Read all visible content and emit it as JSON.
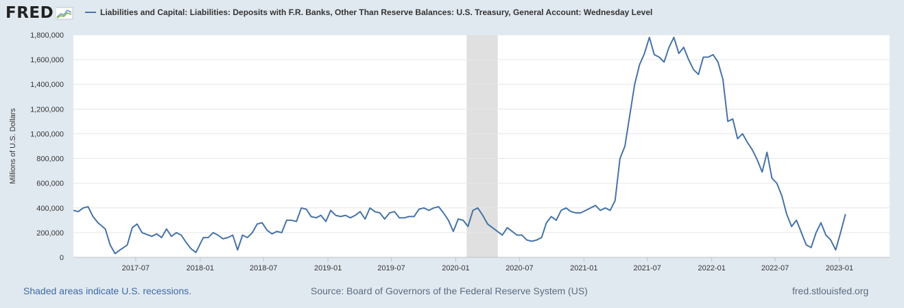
{
  "header": {
    "logo_text": "FRED",
    "legend_label": "Liabilities and Capital: Liabilities: Deposits with F.R. Banks, Other Than Reserve Balances: U.S. Treasury, General Account: Wednesday Level"
  },
  "footer": {
    "recession_note": "Shaded areas indicate U.S. recessions.",
    "source": "Source: Board of Governors of the Federal Reserve System (US)",
    "site": "fred.stlouisfed.org"
  },
  "colors": {
    "series": "#4572a7",
    "recession": "#e0e0e0",
    "background": "#e1e9f0"
  },
  "chart_data": {
    "type": "line",
    "title": "",
    "xlabel": "",
    "ylabel": "Millions of U.S. Dollars",
    "ylim": [
      0,
      1800000
    ],
    "xlim": [
      "2017-01-04",
      "2023-05-24"
    ],
    "yticks": [
      0,
      200000,
      400000,
      600000,
      800000,
      1000000,
      1200000,
      1400000,
      1600000,
      1800000
    ],
    "ytick_labels": [
      "0",
      "200,000",
      "400,000",
      "600,000",
      "800,000",
      "1,000,000",
      "1,200,000",
      "1,400,000",
      "1,600,000",
      "1,800,000"
    ],
    "xticks": [
      "2017-07-01",
      "2018-01-01",
      "2018-07-01",
      "2019-01-01",
      "2019-07-01",
      "2020-01-01",
      "2020-07-01",
      "2021-01-01",
      "2021-07-01",
      "2022-01-01",
      "2022-07-01",
      "2023-01-01"
    ],
    "xtick_labels": [
      "2017-07",
      "2018-01",
      "2018-07",
      "2019-01",
      "2019-07",
      "2020-01",
      "2020-07",
      "2021-01",
      "2021-07",
      "2022-01",
      "2022-07",
      "2023-01"
    ],
    "grid": "horizontal",
    "legend_position": "top",
    "recessions": [
      [
        "2020-02-01",
        "2020-04-30"
      ]
    ],
    "series": [
      {
        "name": "Liabilities and Capital: Liabilities: Deposits with F.R. Banks, Other Than Reserve Balances: U.S. Treasury, General Account: Wednesday Level",
        "points": [
          [
            "2017-01-04",
            380000
          ],
          [
            "2017-01-18",
            370000
          ],
          [
            "2017-02-01",
            400000
          ],
          [
            "2017-02-15",
            410000
          ],
          [
            "2017-03-01",
            330000
          ],
          [
            "2017-03-15",
            280000
          ],
          [
            "2017-04-05",
            230000
          ],
          [
            "2017-04-19",
            100000
          ],
          [
            "2017-05-03",
            30000
          ],
          [
            "2017-05-17",
            60000
          ],
          [
            "2017-06-07",
            100000
          ],
          [
            "2017-06-21",
            240000
          ],
          [
            "2017-07-05",
            270000
          ],
          [
            "2017-07-19",
            200000
          ],
          [
            "2017-08-16",
            170000
          ],
          [
            "2017-08-30",
            190000
          ],
          [
            "2017-09-13",
            160000
          ],
          [
            "2017-09-27",
            230000
          ],
          [
            "2017-10-11",
            170000
          ],
          [
            "2017-10-25",
            200000
          ],
          [
            "2017-11-08",
            180000
          ],
          [
            "2017-11-22",
            120000
          ],
          [
            "2017-12-06",
            70000
          ],
          [
            "2017-12-20",
            40000
          ],
          [
            "2018-01-10",
            160000
          ],
          [
            "2018-01-24",
            160000
          ],
          [
            "2018-02-07",
            200000
          ],
          [
            "2018-02-21",
            180000
          ],
          [
            "2018-03-07",
            150000
          ],
          [
            "2018-03-21",
            160000
          ],
          [
            "2018-04-04",
            180000
          ],
          [
            "2018-04-18",
            60000
          ],
          [
            "2018-05-02",
            180000
          ],
          [
            "2018-05-16",
            160000
          ],
          [
            "2018-05-30",
            200000
          ],
          [
            "2018-06-13",
            270000
          ],
          [
            "2018-06-27",
            280000
          ],
          [
            "2018-07-11",
            220000
          ],
          [
            "2018-07-25",
            190000
          ],
          [
            "2018-08-08",
            210000
          ],
          [
            "2018-08-22",
            200000
          ],
          [
            "2018-09-05",
            300000
          ],
          [
            "2018-09-19",
            300000
          ],
          [
            "2018-10-03",
            290000
          ],
          [
            "2018-10-17",
            400000
          ],
          [
            "2018-10-31",
            390000
          ],
          [
            "2018-11-14",
            330000
          ],
          [
            "2018-11-28",
            320000
          ],
          [
            "2018-12-12",
            340000
          ],
          [
            "2018-12-26",
            290000
          ],
          [
            "2019-01-09",
            380000
          ],
          [
            "2019-01-23",
            340000
          ],
          [
            "2019-02-06",
            330000
          ],
          [
            "2019-02-20",
            340000
          ],
          [
            "2019-03-06",
            320000
          ],
          [
            "2019-03-20",
            340000
          ],
          [
            "2019-04-03",
            370000
          ],
          [
            "2019-04-17",
            310000
          ],
          [
            "2019-05-01",
            400000
          ],
          [
            "2019-05-15",
            370000
          ],
          [
            "2019-05-29",
            360000
          ],
          [
            "2019-06-12",
            310000
          ],
          [
            "2019-06-26",
            360000
          ],
          [
            "2019-07-10",
            370000
          ],
          [
            "2019-07-24",
            320000
          ],
          [
            "2019-08-07",
            320000
          ],
          [
            "2019-08-21",
            330000
          ],
          [
            "2019-09-04",
            330000
          ],
          [
            "2019-09-18",
            390000
          ],
          [
            "2019-10-02",
            400000
          ],
          [
            "2019-10-16",
            380000
          ],
          [
            "2019-10-30",
            400000
          ],
          [
            "2019-11-13",
            410000
          ],
          [
            "2019-11-27",
            360000
          ],
          [
            "2019-12-11",
            300000
          ],
          [
            "2019-12-25",
            210000
          ],
          [
            "2020-01-08",
            310000
          ],
          [
            "2020-01-22",
            300000
          ],
          [
            "2020-02-05",
            250000
          ],
          [
            "2020-02-19",
            380000
          ],
          [
            "2020-03-04",
            400000
          ],
          [
            "2020-03-18",
            340000
          ],
          [
            "2020-04-01",
            270000
          ],
          [
            "2020-04-15",
            240000
          ],
          [
            "2020-04-29",
            210000
          ],
          [
            "2020-05-13",
            180000
          ],
          [
            "2020-05-27",
            240000
          ],
          [
            "2020-06-10",
            210000
          ],
          [
            "2020-06-24",
            180000
          ],
          [
            "2020-07-08",
            180000
          ],
          [
            "2020-07-22",
            140000
          ],
          [
            "2020-08-05",
            130000
          ],
          [
            "2020-08-19",
            140000
          ],
          [
            "2020-09-02",
            160000
          ],
          [
            "2020-09-16",
            280000
          ],
          [
            "2020-09-30",
            330000
          ],
          [
            "2020-10-14",
            300000
          ],
          [
            "2020-10-28",
            380000
          ],
          [
            "2020-11-11",
            400000
          ],
          [
            "2020-11-25",
            370000
          ],
          [
            "2020-12-09",
            360000
          ],
          [
            "2020-12-23",
            360000
          ],
          [
            "2021-01-06",
            380000
          ],
          [
            "2021-01-20",
            400000
          ],
          [
            "2021-02-03",
            420000
          ],
          [
            "2021-02-17",
            380000
          ],
          [
            "2021-03-03",
            400000
          ],
          [
            "2021-03-17",
            380000
          ],
          [
            "2021-03-31",
            460000
          ],
          [
            "2021-04-14",
            800000
          ],
          [
            "2021-04-28",
            900000
          ],
          [
            "2021-05-12",
            1150000
          ],
          [
            "2021-05-26",
            1400000
          ],
          [
            "2021-06-09",
            1560000
          ],
          [
            "2021-06-23",
            1650000
          ],
          [
            "2021-07-07",
            1780000
          ],
          [
            "2021-07-21",
            1640000
          ],
          [
            "2021-08-04",
            1620000
          ],
          [
            "2021-08-18",
            1580000
          ],
          [
            "2021-09-01",
            1700000
          ],
          [
            "2021-09-15",
            1780000
          ],
          [
            "2021-09-29",
            1650000
          ],
          [
            "2021-10-13",
            1700000
          ],
          [
            "2021-10-27",
            1600000
          ],
          [
            "2021-11-10",
            1520000
          ],
          [
            "2021-11-24",
            1480000
          ],
          [
            "2021-12-08",
            1620000
          ],
          [
            "2021-12-22",
            1620000
          ],
          [
            "2022-01-05",
            1640000
          ],
          [
            "2022-01-19",
            1580000
          ],
          [
            "2022-02-02",
            1440000
          ],
          [
            "2022-02-16",
            1100000
          ],
          [
            "2022-03-02",
            1120000
          ],
          [
            "2022-03-16",
            960000
          ],
          [
            "2022-03-30",
            1000000
          ],
          [
            "2022-04-13",
            930000
          ],
          [
            "2022-04-27",
            870000
          ],
          [
            "2022-05-11",
            790000
          ],
          [
            "2022-05-25",
            690000
          ],
          [
            "2022-06-08",
            850000
          ],
          [
            "2022-06-22",
            640000
          ],
          [
            "2022-07-06",
            600000
          ],
          [
            "2022-07-20",
            500000
          ],
          [
            "2022-08-03",
            350000
          ],
          [
            "2022-08-17",
            250000
          ],
          [
            "2022-08-31",
            300000
          ],
          [
            "2022-09-14",
            200000
          ],
          [
            "2022-09-28",
            100000
          ],
          [
            "2022-10-12",
            80000
          ],
          [
            "2022-10-26",
            200000
          ],
          [
            "2022-11-09",
            280000
          ],
          [
            "2022-11-23",
            180000
          ],
          [
            "2022-12-07",
            140000
          ],
          [
            "2022-12-21",
            60000
          ],
          [
            "2023-01-04",
            200000
          ],
          [
            "2023-01-18",
            350000
          ]
        ]
      }
    ]
  }
}
